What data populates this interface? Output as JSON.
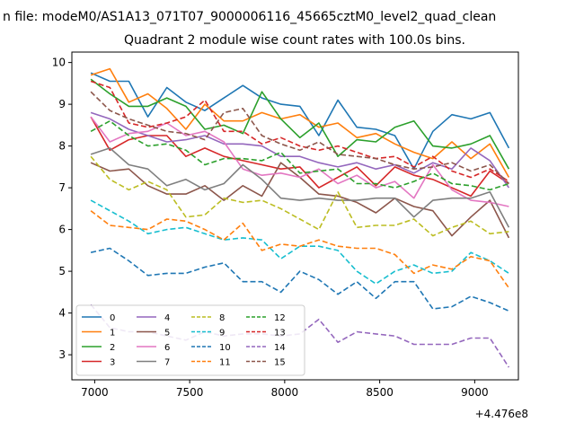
{
  "chart_data": {
    "type": "line",
    "suptitle": "n file: modeM0/AS1A13_071T07_9000006116_45665cztM0_level2_quad_clean",
    "title": "Quadrant 2 module wise count rates with 100.0s bins.",
    "xlabel": "",
    "ylabel": "",
    "x_offset_label": "+4.476e8",
    "xlim": [
      6880,
      9230
    ],
    "ylim": [
      2.4,
      10.25
    ],
    "xticks": [
      7000,
      7500,
      8000,
      8500,
      9000
    ],
    "yticks": [
      3,
      4,
      5,
      6,
      7,
      8,
      9,
      10
    ],
    "grid": false,
    "legend": {
      "placement": "lower-left",
      "columns": 4
    },
    "x": [
      6980,
      7080,
      7180,
      7280,
      7380,
      7480,
      7580,
      7680,
      7780,
      7880,
      7980,
      8080,
      8180,
      8280,
      8380,
      8480,
      8580,
      8680,
      8780,
      8880,
      8980,
      9080,
      9180
    ],
    "series": [
      {
        "name": "0",
        "color": "#1f77b4",
        "dash": "",
        "values": [
          9.75,
          9.55,
          9.55,
          8.7,
          9.4,
          9.05,
          8.85,
          9.15,
          9.45,
          9.15,
          9.0,
          8.95,
          8.25,
          9.1,
          8.45,
          8.4,
          8.25,
          7.45,
          8.35,
          8.75,
          8.65,
          8.8,
          7.95
        ]
      },
      {
        "name": "1",
        "color": "#ff7f0e",
        "dash": "",
        "values": [
          9.7,
          9.85,
          9.05,
          9.25,
          8.9,
          8.4,
          9.0,
          8.6,
          8.6,
          8.8,
          8.65,
          8.75,
          8.45,
          8.55,
          8.2,
          8.3,
          8.05,
          7.85,
          7.7,
          8.1,
          7.7,
          8.05,
          7.25
        ]
      },
      {
        "name": "2",
        "color": "#2ca02c",
        "dash": "",
        "values": [
          9.6,
          9.25,
          8.95,
          8.95,
          9.15,
          8.95,
          8.4,
          8.5,
          8.3,
          9.3,
          8.65,
          8.2,
          8.55,
          7.75,
          8.15,
          8.1,
          8.45,
          8.6,
          8.0,
          7.95,
          8.05,
          8.25,
          7.45
        ]
      },
      {
        "name": "3",
        "color": "#d62728",
        "dash": "",
        "values": [
          8.7,
          7.9,
          8.15,
          8.25,
          8.25,
          7.75,
          7.95,
          7.75,
          7.65,
          7.55,
          7.45,
          7.5,
          7.0,
          7.25,
          7.5,
          7.05,
          7.5,
          7.3,
          7.2,
          7.0,
          6.8,
          7.4,
          7.1
        ]
      },
      {
        "name": "4",
        "color": "#9467bd",
        "dash": "",
        "values": [
          8.8,
          8.65,
          8.4,
          8.25,
          8.1,
          8.15,
          8.25,
          8.05,
          8.05,
          8.0,
          7.75,
          7.75,
          7.6,
          7.5,
          7.6,
          7.45,
          7.55,
          7.35,
          7.6,
          7.45,
          7.95,
          7.65,
          7.0
        ]
      },
      {
        "name": "5",
        "color": "#8c564b",
        "dash": "",
        "values": [
          7.6,
          7.4,
          7.45,
          7.05,
          6.85,
          6.85,
          7.05,
          6.7,
          7.05,
          6.8,
          7.6,
          7.25,
          6.85,
          6.8,
          6.65,
          6.4,
          6.75,
          6.55,
          6.45,
          5.85,
          6.3,
          6.7,
          5.8
        ]
      },
      {
        "name": "6",
        "color": "#e377c2",
        "dash": "",
        "values": [
          8.7,
          8.1,
          8.3,
          8.35,
          8.55,
          8.25,
          8.35,
          8.1,
          7.45,
          7.3,
          7.35,
          7.25,
          7.45,
          7.1,
          7.3,
          7.0,
          7.15,
          6.75,
          7.55,
          6.95,
          6.7,
          6.65,
          6.55
        ]
      },
      {
        "name": "7",
        "color": "#7f7f7f",
        "dash": "",
        "values": [
          7.8,
          7.95,
          7.55,
          7.45,
          7.05,
          7.2,
          6.95,
          7.1,
          7.55,
          7.2,
          6.75,
          6.7,
          6.75,
          6.7,
          6.7,
          6.75,
          6.75,
          6.3,
          6.7,
          6.75,
          6.75,
          6.9,
          6.05
        ]
      },
      {
        "name": "8",
        "color": "#bcbd22",
        "dash": "6,3",
        "values": [
          7.75,
          7.2,
          6.95,
          7.15,
          6.95,
          6.3,
          6.35,
          6.75,
          6.65,
          6.7,
          6.5,
          6.25,
          6.0,
          6.9,
          6.05,
          6.1,
          6.1,
          6.25,
          5.85,
          6.05,
          6.2,
          5.9,
          5.95
        ]
      },
      {
        "name": "9",
        "color": "#17becf",
        "dash": "6,3",
        "values": [
          6.7,
          6.45,
          6.2,
          5.9,
          6.0,
          6.05,
          5.9,
          5.75,
          5.8,
          5.75,
          5.3,
          5.6,
          5.6,
          5.5,
          5.0,
          4.7,
          5.0,
          5.15,
          4.95,
          5.0,
          5.45,
          5.25,
          4.95
        ]
      },
      {
        "name": "10",
        "color": "#1f77b4",
        "dash": "6,3",
        "values": [
          5.45,
          5.55,
          5.25,
          4.9,
          4.95,
          4.95,
          5.1,
          5.2,
          4.75,
          4.75,
          4.5,
          5.0,
          4.8,
          4.45,
          4.75,
          4.35,
          4.75,
          4.75,
          4.1,
          4.15,
          4.4,
          4.25,
          4.05
        ]
      },
      {
        "name": "11",
        "color": "#ff7f0e",
        "dash": "6,3",
        "values": [
          6.45,
          6.1,
          6.05,
          6.0,
          6.25,
          6.2,
          6.0,
          5.75,
          6.15,
          5.5,
          5.65,
          5.6,
          5.75,
          5.6,
          5.55,
          5.55,
          5.4,
          4.95,
          5.15,
          5.05,
          5.35,
          5.25,
          4.6
        ]
      },
      {
        "name": "12",
        "color": "#2ca02c",
        "dash": "6,3",
        "values": [
          8.35,
          8.6,
          8.25,
          8.0,
          8.05,
          7.9,
          7.55,
          7.7,
          7.7,
          7.65,
          7.85,
          7.35,
          7.4,
          7.45,
          7.1,
          7.1,
          7.0,
          7.15,
          7.35,
          7.1,
          7.05,
          6.95,
          7.1
        ]
      },
      {
        "name": "13",
        "color": "#d62728",
        "dash": "6,3",
        "values": [
          9.55,
          9.4,
          8.55,
          8.45,
          8.55,
          8.7,
          9.1,
          8.35,
          8.35,
          8.05,
          8.2,
          8.0,
          7.9,
          8.0,
          7.85,
          7.7,
          7.75,
          7.5,
          7.75,
          7.4,
          7.25,
          7.45,
          7.15
        ]
      },
      {
        "name": "14",
        "color": "#9467bd",
        "dash": "6,3",
        "values": [
          4.2,
          3.65,
          3.55,
          3.55,
          3.45,
          3.35,
          3.55,
          3.45,
          3.5,
          3.5,
          3.45,
          3.5,
          3.85,
          3.3,
          3.55,
          3.5,
          3.45,
          3.25,
          3.25,
          3.25,
          3.4,
          3.4,
          2.7
        ]
      },
      {
        "name": "15",
        "color": "#8c564b",
        "dash": "6,3",
        "values": [
          9.3,
          8.85,
          8.65,
          8.5,
          8.35,
          8.3,
          8.15,
          8.8,
          8.9,
          8.25,
          8.05,
          7.9,
          8.1,
          7.8,
          7.75,
          7.7,
          7.55,
          7.45,
          7.5,
          7.6,
          7.4,
          7.55,
          7.1
        ]
      }
    ]
  }
}
